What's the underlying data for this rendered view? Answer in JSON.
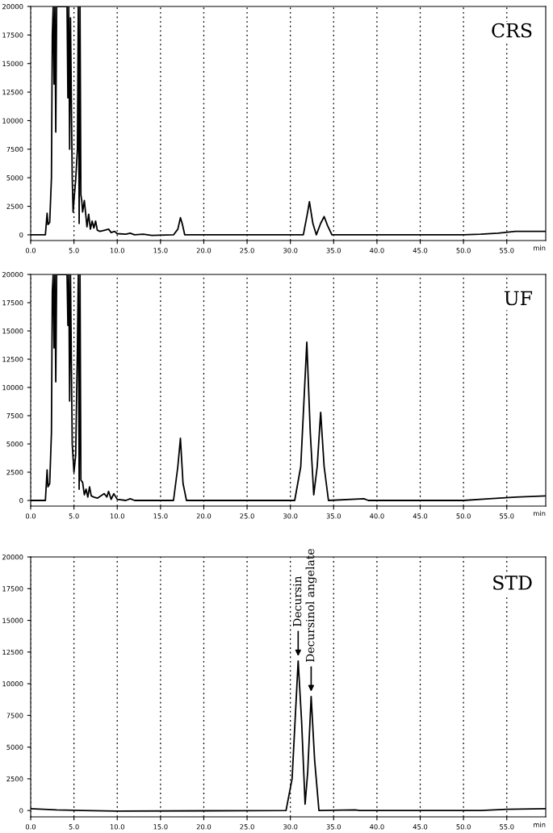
{
  "chart_data": [
    {
      "type": "line",
      "title": "CRS",
      "xlabel": "min",
      "xlim": [
        0,
        59.5
      ],
      "ylim": [
        -500,
        20000
      ],
      "grid": "x",
      "color": "#000000",
      "xticks": [
        {
          "value": 0,
          "label": "0.0"
        },
        {
          "value": 5,
          "label": "5.0"
        },
        {
          "value": 10,
          "label": "10.0"
        },
        {
          "value": 15,
          "label": "15.0"
        },
        {
          "value": 20,
          "label": "20.0"
        },
        {
          "value": 25,
          "label": "25.0"
        },
        {
          "value": 30,
          "label": "30.0"
        },
        {
          "value": 35,
          "label": "35.0"
        },
        {
          "value": 40,
          "label": "40.0"
        },
        {
          "value": 45,
          "label": "45.0"
        },
        {
          "value": 50,
          "label": "50.0"
        },
        {
          "value": 55,
          "label": "55.0"
        }
      ],
      "yticks": [
        0,
        2500,
        5000,
        7500,
        10000,
        12500,
        15000,
        17500,
        20000
      ],
      "x": [
        0,
        1.7,
        1.9,
        2.0,
        2.2,
        2.4,
        2.5,
        2.6,
        2.7,
        2.8,
        2.9,
        3.0,
        4.2,
        4.3,
        4.4,
        4.5,
        4.6,
        4.8,
        4.9,
        5.0,
        5.2,
        5.4,
        5.5,
        5.6,
        5.7,
        5.8,
        5.9,
        6.0,
        6.2,
        6.4,
        6.5,
        6.7,
        6.9,
        7.1,
        7.3,
        7.5,
        7.7,
        8.0,
        8.5,
        9.0,
        9.3,
        9.7,
        10.0,
        11.0,
        11.5,
        12.0,
        13.0,
        14.0,
        16.5,
        17.0,
        17.3,
        17.5,
        17.8,
        19.0,
        30.0,
        31.5,
        32.0,
        32.2,
        32.6,
        33.0,
        33.5,
        33.9,
        34.3,
        34.8,
        50.0,
        52.0,
        54.0,
        56.0,
        59.5
      ],
      "values": [
        0,
        0,
        1900,
        900,
        1100,
        5000,
        17500,
        20000,
        13200,
        20000,
        9000,
        20000,
        20000,
        12000,
        20000,
        7500,
        19000,
        5000,
        2000,
        3000,
        4800,
        7500,
        20000,
        1000,
        20000,
        3500,
        3000,
        2000,
        3000,
        1500,
        700,
        1800,
        500,
        1200,
        600,
        1200,
        400,
        300,
        400,
        500,
        200,
        300,
        100,
        50,
        150,
        0,
        50,
        -50,
        0,
        500,
        1500,
        1000,
        0,
        0,
        0,
        0,
        2000,
        2900,
        1000,
        0,
        1000,
        1600,
        800,
        0,
        0,
        50,
        150,
        300,
        300
      ]
    },
    {
      "type": "line",
      "title": "UF",
      "xlabel": "min",
      "xlim": [
        0,
        59.5
      ],
      "ylim": [
        -500,
        20000
      ],
      "grid": "x",
      "color": "#000000",
      "xticks": [
        {
          "value": 0,
          "label": "0.0"
        },
        {
          "value": 5,
          "label": "5.0"
        },
        {
          "value": 10,
          "label": "10.0"
        },
        {
          "value": 15,
          "label": "15.0"
        },
        {
          "value": 20,
          "label": "20.0"
        },
        {
          "value": 25,
          "label": "25.0"
        },
        {
          "value": 30,
          "label": "30.0"
        },
        {
          "value": 35,
          "label": "35.0"
        },
        {
          "value": 40,
          "label": "40.0"
        },
        {
          "value": 45,
          "label": "45.0"
        },
        {
          "value": 50,
          "label": "50.0"
        },
        {
          "value": 55,
          "label": "55.0"
        }
      ],
      "yticks": [
        0,
        2500,
        5000,
        7500,
        10000,
        12500,
        15000,
        17500,
        20000
      ],
      "x": [
        0,
        1.7,
        1.9,
        2.0,
        2.2,
        2.4,
        2.5,
        2.6,
        2.7,
        2.8,
        2.9,
        3.0,
        4.2,
        4.3,
        4.4,
        4.5,
        4.6,
        4.8,
        5.0,
        5.2,
        5.4,
        5.5,
        5.6,
        5.7,
        5.8,
        6.0,
        6.2,
        6.4,
        6.6,
        6.8,
        7.0,
        7.3,
        7.7,
        8.5,
        8.8,
        9.0,
        9.3,
        9.6,
        10.0,
        11.0,
        11.5,
        12.0,
        16.5,
        17.0,
        17.3,
        17.6,
        18.0,
        30.5,
        31.2,
        31.9,
        32.3,
        32.7,
        33.1,
        33.5,
        33.9,
        34.4,
        38.5,
        39.0,
        50.0,
        53.0,
        56.0,
        59.5
      ],
      "values": [
        0,
        0,
        2700,
        1200,
        1500,
        6000,
        18500,
        20000,
        13500,
        20000,
        10500,
        20000,
        20000,
        15500,
        20000,
        8800,
        20000,
        5000,
        2500,
        4000,
        13500,
        20000,
        1000,
        20000,
        1800,
        1600,
        500,
        1000,
        300,
        1200,
        400,
        300,
        200,
        600,
        300,
        800,
        100,
        600,
        100,
        0,
        150,
        0,
        0,
        3000,
        5500,
        1500,
        0,
        0,
        3000,
        14000,
        6000,
        500,
        3000,
        7800,
        3000,
        0,
        150,
        0,
        0,
        150,
        300,
        400
      ]
    },
    {
      "type": "line",
      "title": "STD",
      "xlabel": "min",
      "xlim": [
        0,
        59.5
      ],
      "ylim": [
        -500,
        20000
      ],
      "grid": "x",
      "color": "#000000",
      "xticks": [
        {
          "value": 0,
          "label": "0.0"
        },
        {
          "value": 5,
          "label": "5.0"
        },
        {
          "value": 10,
          "label": "10.0"
        },
        {
          "value": 15,
          "label": "15.0"
        },
        {
          "value": 20,
          "label": "20.0"
        },
        {
          "value": 25,
          "label": "25.0"
        },
        {
          "value": 30,
          "label": "30.0"
        },
        {
          "value": 35,
          "label": "35.0"
        },
        {
          "value": 40,
          "label": "40.0"
        },
        {
          "value": 45,
          "label": "45.0"
        },
        {
          "value": 50,
          "label": "50.0"
        },
        {
          "value": 55,
          "label": "55.0"
        }
      ],
      "yticks": [
        0,
        2500,
        5000,
        7500,
        10000,
        12500,
        15000,
        17500,
        20000
      ],
      "x": [
        0,
        3.0,
        6.0,
        10.0,
        29.5,
        30.2,
        30.9,
        31.3,
        31.7,
        32.0,
        32.4,
        32.8,
        33.3,
        37.5,
        38.0,
        52.0,
        55.0,
        59.5
      ],
      "values": [
        150,
        50,
        0,
        -50,
        0,
        2500,
        11800,
        7000,
        500,
        3000,
        9000,
        4000,
        0,
        50,
        0,
        0,
        100,
        150
      ],
      "annotations": [
        {
          "text": "Decursin",
          "x": 30.9,
          "y": 11800
        },
        {
          "text": "Decursinol angelate",
          "x": 32.4,
          "y": 9000
        }
      ]
    }
  ]
}
